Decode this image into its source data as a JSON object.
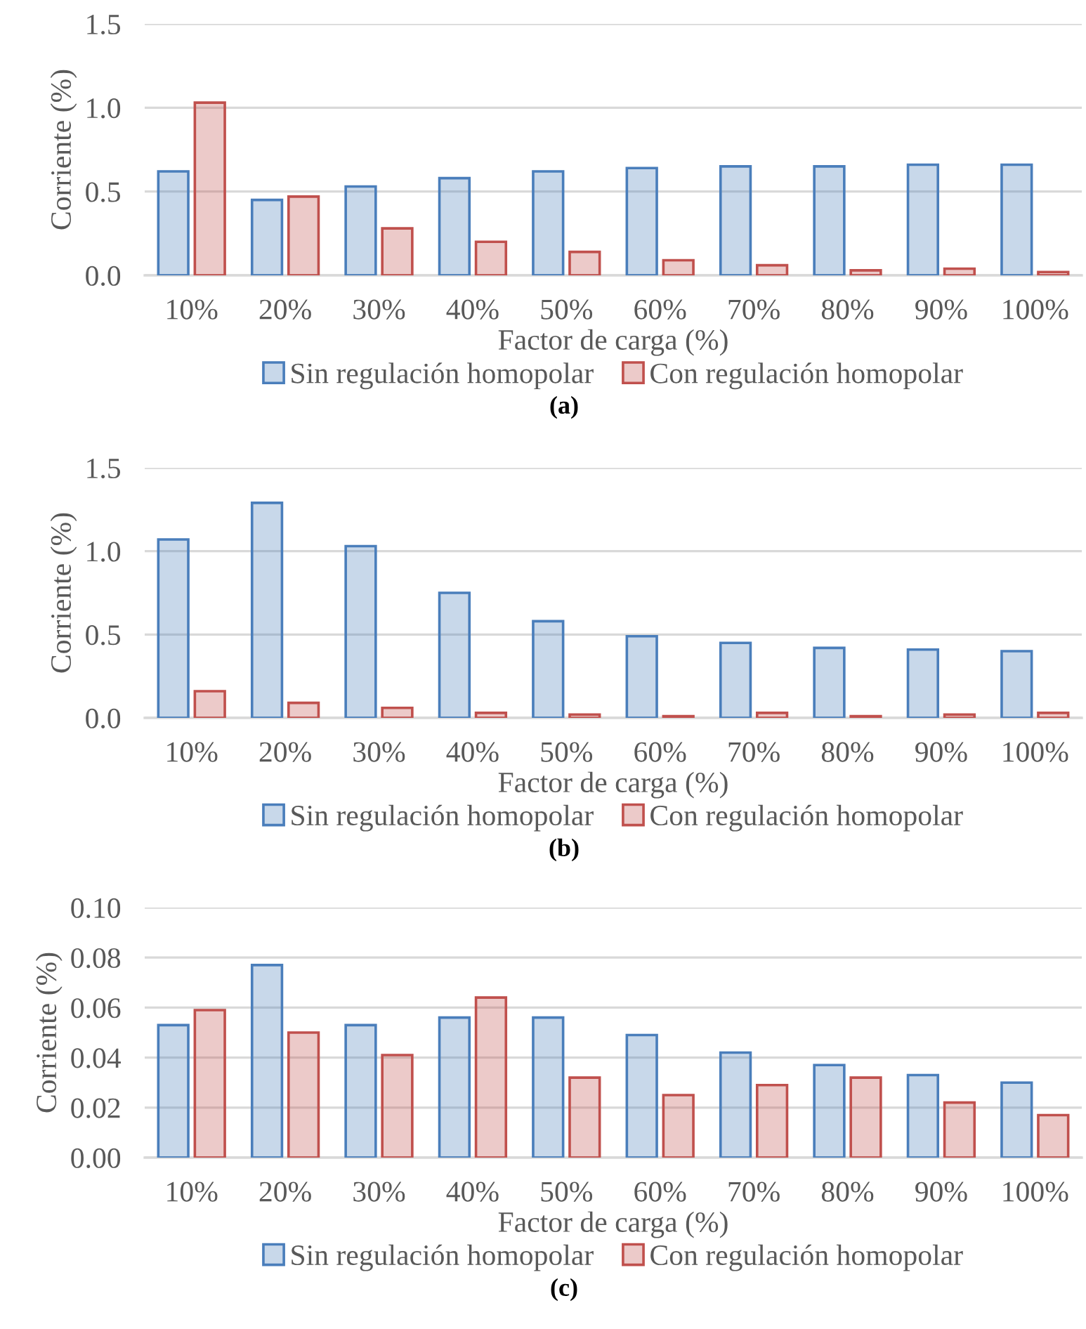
{
  "chart_data": [
    {
      "type": "bar",
      "categories": [
        "10%",
        "20%",
        "30%",
        "40%",
        "50%",
        "60%",
        "70%",
        "80%",
        "90%",
        "100%"
      ],
      "xlabel": "Factor de carga (%)",
      "ylabel": "Corriente (%)",
      "ylim": [
        0,
        1.5
      ],
      "yticks": [
        {
          "value": 0,
          "label": "0.0"
        },
        {
          "value": 0.5,
          "label": "0.5"
        },
        {
          "value": 1,
          "label": "1.0"
        },
        {
          "value": 1.5,
          "label": "1.5"
        }
      ],
      "grid": "y",
      "legend": "bottom",
      "annotations": [
        "(a)"
      ],
      "series": [
        {
          "name": "Sin regulación homopolar",
          "color": "#4a7ebb",
          "values": [
            0.62,
            0.45,
            0.53,
            0.58,
            0.62,
            0.64,
            0.65,
            0.65,
            0.66,
            0.66
          ]
        },
        {
          "name": "Con regulación homopolar",
          "color": "#c0504d",
          "values": [
            1.03,
            0.47,
            0.28,
            0.2,
            0.14,
            0.09,
            0.06,
            0.03,
            0.04,
            0.02
          ]
        }
      ]
    },
    {
      "type": "bar",
      "categories": [
        "10%",
        "20%",
        "30%",
        "40%",
        "50%",
        "60%",
        "70%",
        "80%",
        "90%",
        "100%"
      ],
      "xlabel": "Factor de carga (%)",
      "ylabel": "Corriente (%)",
      "ylim": [
        0,
        1.5
      ],
      "yticks": [
        {
          "value": 0,
          "label": "0.0"
        },
        {
          "value": 0.5,
          "label": "0.5"
        },
        {
          "value": 1,
          "label": "1.0"
        },
        {
          "value": 1.5,
          "label": "1.5"
        }
      ],
      "grid": "y",
      "legend": "bottom",
      "annotations": [
        "(b)"
      ],
      "series": [
        {
          "name": "Sin regulación homopolar",
          "color": "#4a7ebb",
          "values": [
            1.07,
            1.29,
            1.03,
            0.75,
            0.58,
            0.49,
            0.45,
            0.42,
            0.41,
            0.4
          ]
        },
        {
          "name": "Con regulación homopolar",
          "color": "#c0504d",
          "values": [
            0.16,
            0.09,
            0.06,
            0.03,
            0.02,
            0.01,
            0.03,
            0.01,
            0.02,
            0.03
          ]
        }
      ]
    },
    {
      "type": "bar",
      "categories": [
        "10%",
        "20%",
        "30%",
        "40%",
        "50%",
        "60%",
        "70%",
        "80%",
        "90%",
        "100%"
      ],
      "xlabel": "Factor de carga (%)",
      "ylabel": "Corriente (%)",
      "ylim": [
        0,
        0.1
      ],
      "yticks": [
        {
          "value": 0,
          "label": "0.00"
        },
        {
          "value": 0.02,
          "label": "0.02"
        },
        {
          "value": 0.04,
          "label": "0.04"
        },
        {
          "value": 0.06,
          "label": "0.06"
        },
        {
          "value": 0.08,
          "label": "0.08"
        },
        {
          "value": 0.1,
          "label": "0.10"
        }
      ],
      "grid": "y",
      "legend": "bottom",
      "annotations": [
        "(c)"
      ],
      "series": [
        {
          "name": "Sin regulación homopolar",
          "color": "#4a7ebb",
          "values": [
            0.053,
            0.077,
            0.053,
            0.056,
            0.056,
            0.049,
            0.042,
            0.037,
            0.033,
            0.03
          ]
        },
        {
          "name": "Con regulación homopolar",
          "color": "#c0504d",
          "values": [
            0.059,
            0.05,
            0.041,
            0.064,
            0.032,
            0.025,
            0.029,
            0.032,
            0.022,
            0.017
          ]
        }
      ]
    }
  ]
}
